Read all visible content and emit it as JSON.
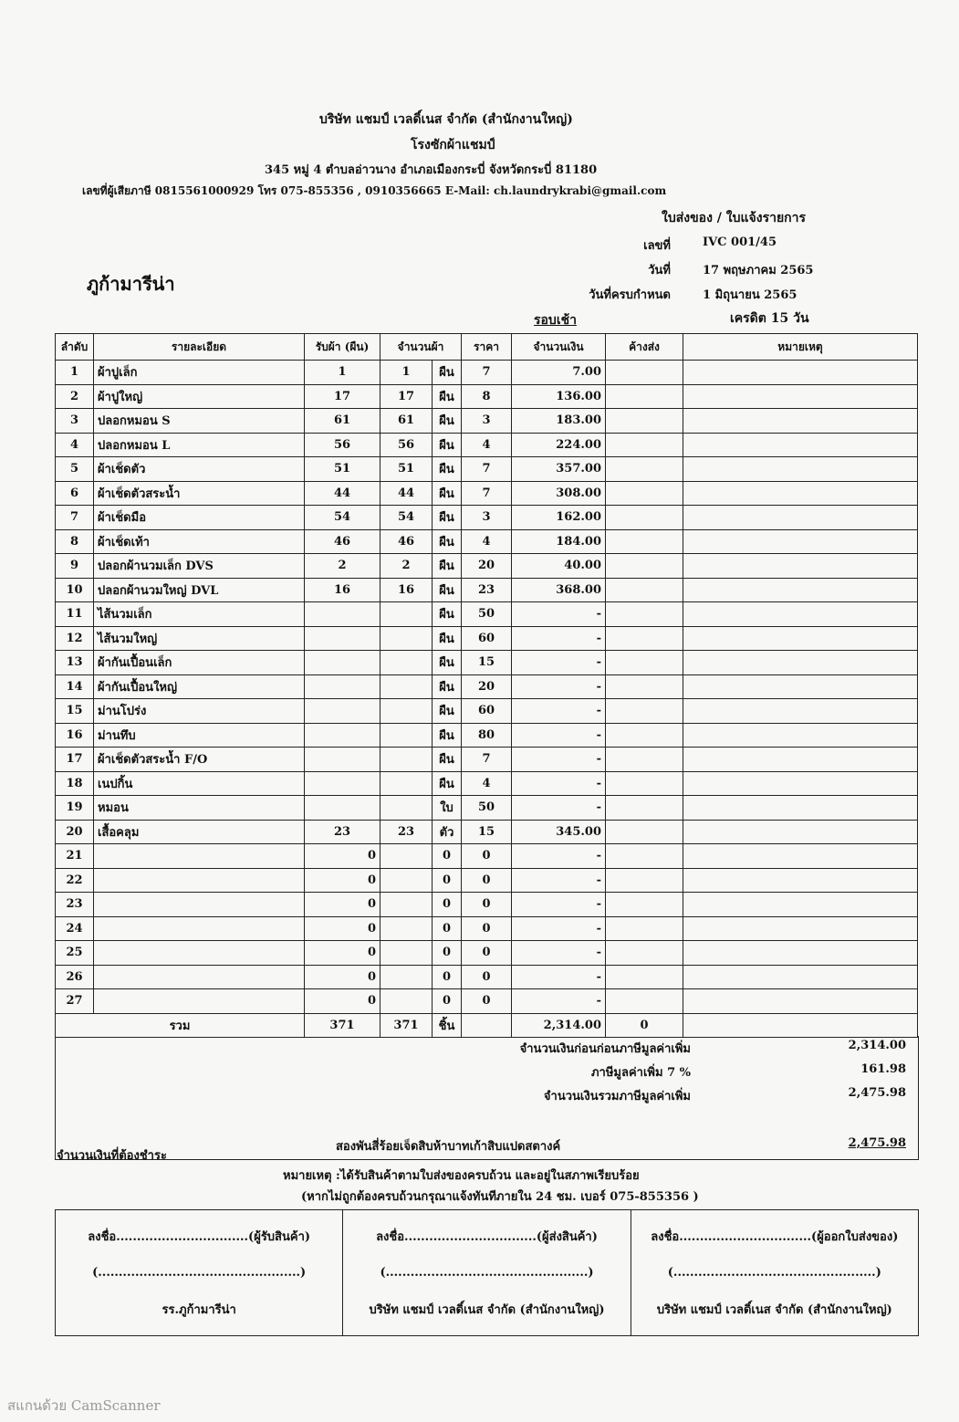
{
  "header": {
    "company": "บริษัท แชมป์ เวลดิ์เนส จำกัด (สำนักงานใหญ่)",
    "branch": "โรงซักผ้าแชมป์",
    "address": "345 หมู่ 4 ตำบลอ่าวนาง อำเภอเมืองกระบี่ จังหวัดกระบี่ 81180",
    "contact": "เลขที่ผู้เสียภาษี 0815561000929 โทร 075-855356 , 0910356665 E-Mail: ch.laundrykrabi@gmail.com",
    "doc_title": "ใบส่งของ / ใบแจ้งรายการ",
    "customer": "ภูก้ามารีน่า",
    "round": "รอบเช้า",
    "meta": [
      [
        "เลขที่",
        "IVC 001/45"
      ],
      [
        "วันที่",
        "17 พฤษภาคม 2565"
      ],
      [
        "วันที่ครบกำหนด",
        "1 มิถุนายน 2565"
      ]
    ],
    "credit": "เครดิต 15 วัน"
  },
  "table": {
    "columns": [
      "ลำดับ",
      "รายละเอียด",
      "รับผ้า (ผืน)",
      "จำนวนผ้า",
      "ราคา",
      "จำนวนเงิน",
      "ค้างส่ง",
      "หมายเหตุ"
    ],
    "rows": [
      [
        "1",
        "ผ้าปูเล็ก",
        "1",
        "1",
        "ผืน",
        "7",
        "7.00"
      ],
      [
        "2",
        "ผ้าปูใหญ่",
        "17",
        "17",
        "ผืน",
        "8",
        "136.00"
      ],
      [
        "3",
        "ปลอกหมอน S",
        "61",
        "61",
        "ผืน",
        "3",
        "183.00"
      ],
      [
        "4",
        "ปลอกหมอน L",
        "56",
        "56",
        "ผืน",
        "4",
        "224.00"
      ],
      [
        "5",
        "ผ้าเช็ดตัว",
        "51",
        "51",
        "ผืน",
        "7",
        "357.00"
      ],
      [
        "6",
        "ผ้าเช็ดตัวสระน้ำ",
        "44",
        "44",
        "ผืน",
        "7",
        "308.00"
      ],
      [
        "7",
        "ผ้าเช็ดมือ",
        "54",
        "54",
        "ผืน",
        "3",
        "162.00"
      ],
      [
        "8",
        "ผ้าเช็ดเท้า",
        "46",
        "46",
        "ผืน",
        "4",
        "184.00"
      ],
      [
        "9",
        "ปลอกผ้านวมเล็ก DVS",
        "2",
        "2",
        "ผืน",
        "20",
        "40.00"
      ],
      [
        "10",
        "ปลอกผ้านวมใหญ่ DVL",
        "16",
        "16",
        "ผืน",
        "23",
        "368.00"
      ],
      [
        "11",
        "ไส้นวมเล็ก",
        null,
        null,
        "ผืน",
        "50",
        "-"
      ],
      [
        "12",
        "ไส้นวมใหญ่",
        null,
        null,
        "ผืน",
        "60",
        "-"
      ],
      [
        "13",
        "ผ้ากันเปื้อนเล็ก",
        null,
        null,
        "ผืน",
        "15",
        "-"
      ],
      [
        "14",
        "ผ้ากันเปื้อนใหญ่",
        null,
        null,
        "ผืน",
        "20",
        "-"
      ],
      [
        "15",
        "ม่านโปร่ง",
        null,
        null,
        "ผืน",
        "60",
        "-"
      ],
      [
        "16",
        "ม่านทึบ",
        null,
        null,
        "ผืน",
        "80",
        "-"
      ],
      [
        "17",
        "ผ้าเช็ดตัวสระน้ำ F/O",
        null,
        null,
        "ผืน",
        "7",
        "-"
      ],
      [
        "18",
        "เนปกิ้น",
        null,
        null,
        "ผืน",
        "4",
        "-"
      ],
      [
        "19",
        "หมอน",
        null,
        null,
        "ใบ",
        "50",
        "-"
      ],
      [
        "20",
        "เสื้อคลุม",
        "23",
        "23",
        "ตัว",
        "15",
        "345.00"
      ],
      [
        "21",
        null,
        "0",
        null,
        "0",
        "0",
        "-"
      ],
      [
        "22",
        null,
        "0",
        null,
        "0",
        "0",
        "-"
      ],
      [
        "23",
        null,
        "0",
        null,
        "0",
        "0",
        "-"
      ],
      [
        "24",
        null,
        "0",
        null,
        "0",
        "0",
        "-"
      ],
      [
        "25",
        null,
        "0",
        null,
        "0",
        "0",
        "-"
      ],
      [
        "26",
        null,
        "0",
        null,
        "0",
        "0",
        "-"
      ],
      [
        "27",
        null,
        "0",
        null,
        "0",
        "0",
        "-"
      ]
    ],
    "total": {
      "label": "รวม",
      "received": "371",
      "qty": "371",
      "unit": "ชิ้น",
      "amount": "2,314.00",
      "pending": "0"
    }
  },
  "summary": [
    [
      "จำนวนเงินก่อนก่อนภาษีมูลค่าเพิ่ม",
      "2,314.00"
    ],
    [
      "ภาษีมูลค่าเพิ่ม 7 %",
      "161.98"
    ],
    [
      "จำนวนเงินรวมภาษีมูลค่าเพิ่ม",
      "2,475.98"
    ]
  ],
  "payable": {
    "label": "จำนวนเงินที่ต้องชำระ",
    "words": "สองพันสี่ร้อยเจ็ดสิบห้าบาทเก้าสิบแปดสตางค์",
    "amount": "2,475.98"
  },
  "notes": [
    "หมายเหตุ :ได้รับสินค้าตามใบส่งของครบถ้วน และอยู่ในสภาพเรียบร้อย",
    "(หากไม่ถูกต้องครบถ้วนกรุณาแจ้งทันทีภายใน 24 ชม. เบอร์ 075-855356 )"
  ],
  "signatures": [
    [
      "ลงชื่อ................................(ผู้รับสินค้า)",
      "(.................................................)",
      "รร.ภูก้ามารีน่า"
    ],
    [
      "ลงชื่อ................................(ผู้ส่งสินค้า)",
      "(.................................................)",
      "บริษัท แชมป์ เวลดิ์เนส จำกัด (สำนักงานใหญ่)"
    ],
    [
      "ลงชื่อ................................(ผู้ออกใบส่งของ)",
      "(.................................................)",
      "บริษัท แชมป์ เวลดิ์เนส จำกัด (สำนักงานใหญ่)"
    ]
  ],
  "footer": "สแกนด้วย CamScanner"
}
